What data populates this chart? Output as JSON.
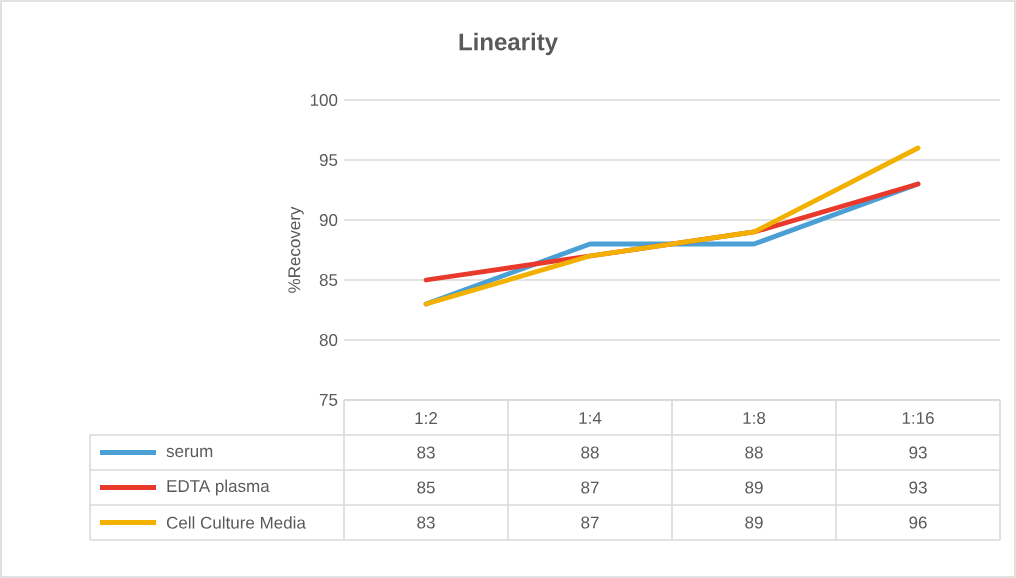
{
  "chart_data": {
    "type": "line",
    "title": "Linearity",
    "ylabel": "%Recovery",
    "categories": [
      "1:2",
      "1:4",
      "1:8",
      "1:16"
    ],
    "series": [
      {
        "name": "serum",
        "color": "#4a9fd4",
        "values": [
          83,
          88,
          88,
          93
        ]
      },
      {
        "name": "EDTA plasma",
        "color": "#e8392b",
        "values": [
          85,
          87,
          89,
          93
        ]
      },
      {
        "name": "Cell Culture Media",
        "color": "#f2b000",
        "values": [
          83,
          87,
          89,
          96
        ]
      }
    ],
    "ylim": [
      75,
      100
    ],
    "yticks": [
      75,
      80,
      85,
      90,
      95,
      100
    ],
    "grid": "y",
    "legend": "bottom",
    "data_labels": true,
    "marker": "none",
    "line_style": "solid"
  }
}
